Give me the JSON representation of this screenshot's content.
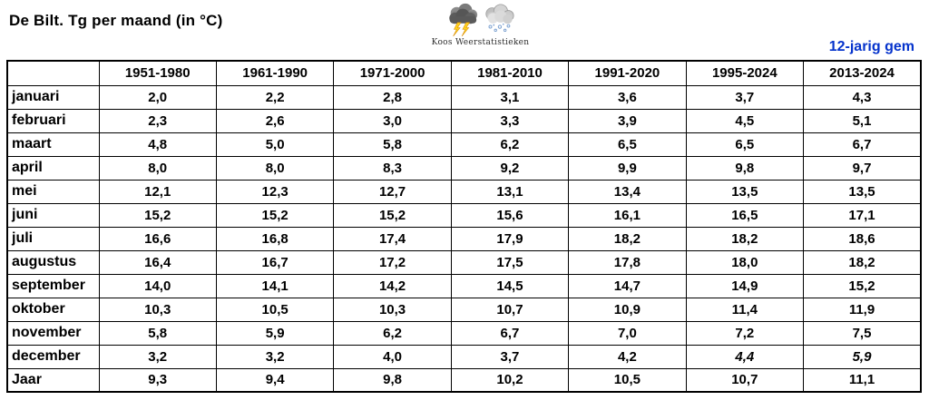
{
  "title": "De Bilt. Tg per maand (in °C)",
  "logo": {
    "caption": "Koos Weerstatistieken",
    "icons": [
      "storm-cloud-lightning-icon",
      "snow-cloud-icon"
    ]
  },
  "right_note": "12-jarig gem",
  "colors": {
    "black": "#000000",
    "red": "#ff0000",
    "blue": "#0533cc",
    "green": "#00b050",
    "note_blue": "#0533cc",
    "border": "#000000",
    "background": "#ffffff"
  },
  "chart_data": {
    "type": "table",
    "title": "De Bilt. Tg per maand (in °C)",
    "columns": [
      "",
      "1951-1980",
      "1961-1990",
      "1971-2000",
      "1981-2010",
      "1991-2020",
      "1995-2024",
      "2013-2024"
    ],
    "style_legend": {
      "k": "black",
      "r": "red",
      "b": "blue",
      "g": "green-italic"
    },
    "rows": [
      {
        "label": "januari",
        "values": [
          "2,0",
          "2,2",
          "2,8",
          "3,1",
          "3,6",
          "3,7",
          "4,3"
        ],
        "styles": [
          "k",
          "k",
          "k",
          "k",
          "k",
          "r",
          "b"
        ]
      },
      {
        "label": "februari",
        "values": [
          "2,3",
          "2,6",
          "3,0",
          "3,3",
          "3,9",
          "4,5",
          "5,1"
        ],
        "styles": [
          "k",
          "k",
          "k",
          "k",
          "k",
          "r",
          "b"
        ]
      },
      {
        "label": "maart",
        "values": [
          "4,8",
          "5,0",
          "5,8",
          "6,2",
          "6,5",
          "6,5",
          "6,7"
        ],
        "styles": [
          "k",
          "k",
          "k",
          "k",
          "k",
          "k",
          "b"
        ]
      },
      {
        "label": "april",
        "values": [
          "8,0",
          "8,0",
          "8,3",
          "9,2",
          "9,9",
          "9,8",
          "9,7"
        ],
        "styles": [
          "k",
          "k",
          "k",
          "k",
          "k",
          "b",
          "b"
        ]
      },
      {
        "label": "mei",
        "values": [
          "12,1",
          "12,3",
          "12,7",
          "13,1",
          "13,4",
          "13,5",
          "13,5"
        ],
        "styles": [
          "k",
          "k",
          "k",
          "k",
          "k",
          "r",
          "b"
        ]
      },
      {
        "label": "juni",
        "values": [
          "15,2",
          "15,2",
          "15,2",
          "15,6",
          "16,1",
          "16,5",
          "17,1"
        ],
        "styles": [
          "k",
          "k",
          "k",
          "k",
          "k",
          "r",
          "b"
        ]
      },
      {
        "label": "juli",
        "values": [
          "16,6",
          "16,8",
          "17,4",
          "17,9",
          "18,2",
          "18,2",
          "18,6"
        ],
        "styles": [
          "k",
          "k",
          "k",
          "k",
          "k",
          "k",
          "b"
        ]
      },
      {
        "label": "augustus",
        "values": [
          "16,4",
          "16,7",
          "17,2",
          "17,5",
          "17,8",
          "18,0",
          "18,2"
        ],
        "styles": [
          "k",
          "k",
          "k",
          "k",
          "k",
          "r",
          "b"
        ]
      },
      {
        "label": "september",
        "values": [
          "14,0",
          "14,1",
          "14,2",
          "14,5",
          "14,7",
          "14,9",
          "15,2"
        ],
        "styles": [
          "k",
          "k",
          "k",
          "k",
          "k",
          "r",
          "b"
        ]
      },
      {
        "label": "oktober",
        "values": [
          "10,3",
          "10,5",
          "10,3",
          "10,7",
          "10,9",
          "11,4",
          "11,9"
        ],
        "styles": [
          "k",
          "k",
          "k",
          "k",
          "k",
          "r",
          "b"
        ]
      },
      {
        "label": "november",
        "values": [
          "5,8",
          "5,9",
          "6,2",
          "6,7",
          "7,0",
          "7,2",
          "7,5"
        ],
        "styles": [
          "k",
          "k",
          "k",
          "k",
          "k",
          "r",
          "b"
        ]
      },
      {
        "label": "december",
        "values": [
          "3,2",
          "3,2",
          "4,0",
          "3,7",
          "4,2",
          "4,4",
          "5,9"
        ],
        "styles": [
          "k",
          "k",
          "k",
          "k",
          "k",
          "g",
          "g"
        ]
      },
      {
        "label": "Jaar",
        "values": [
          "9,3",
          "9,4",
          "9,8",
          "10,2",
          "10,5",
          "10,7",
          "11,1"
        ],
        "styles": [
          "k",
          "k",
          "k",
          "k",
          "k",
          "k",
          "k"
        ]
      }
    ]
  }
}
